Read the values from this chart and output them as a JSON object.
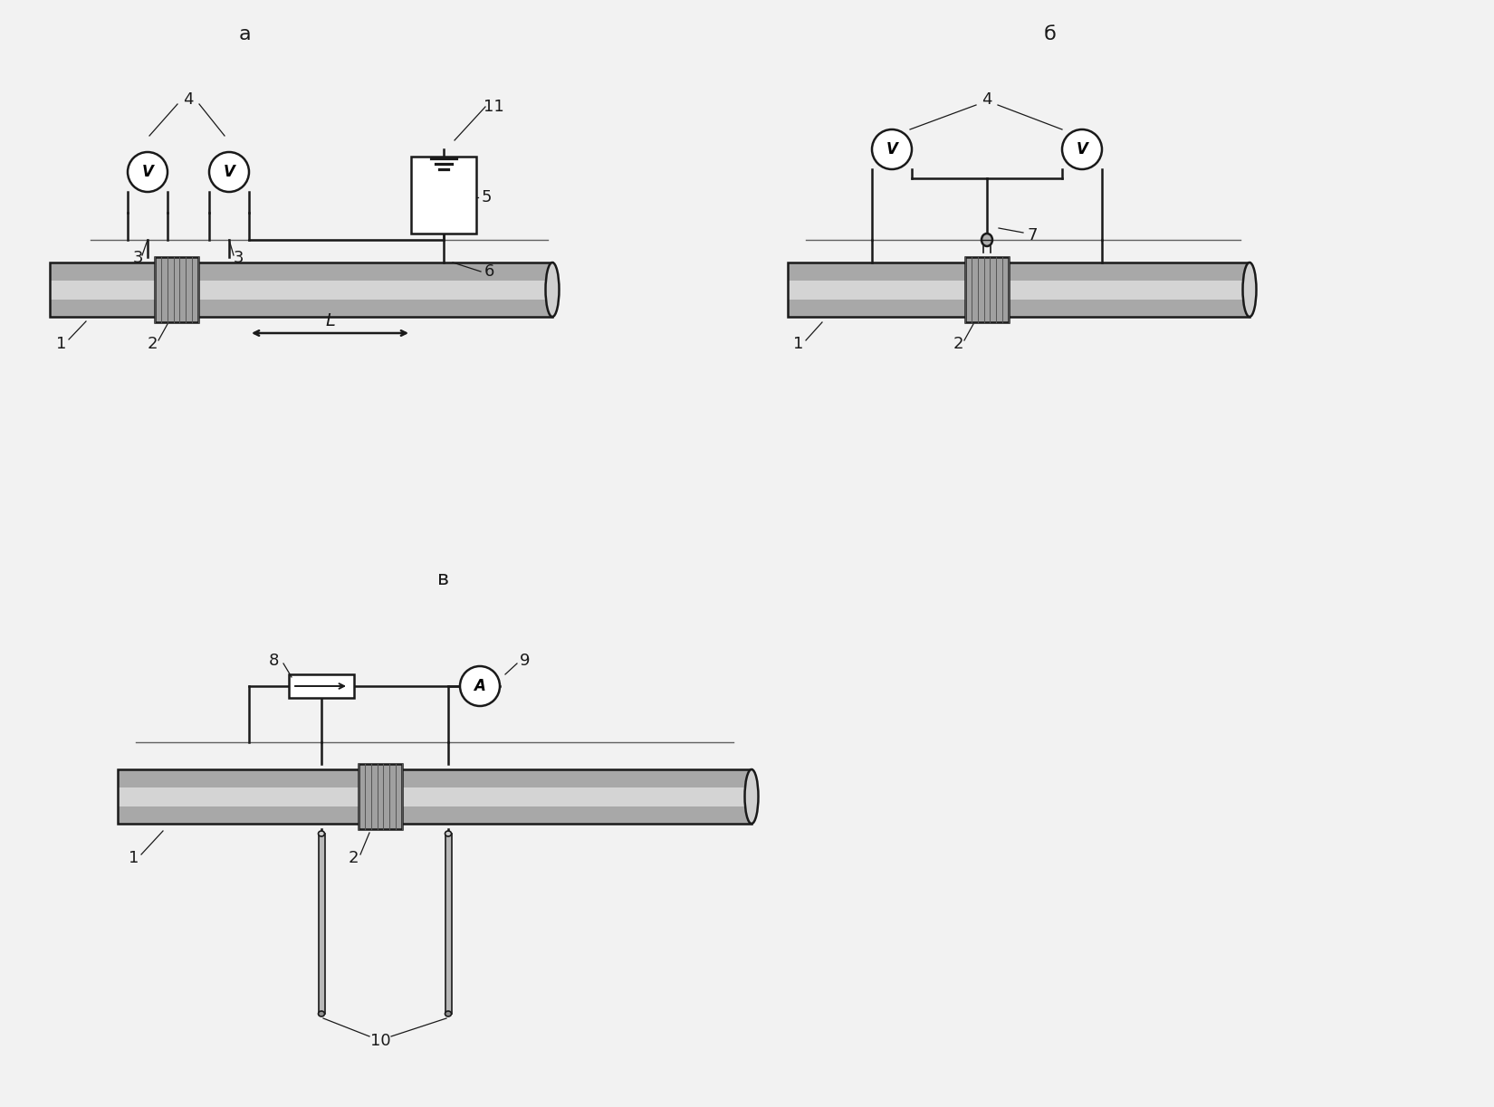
{
  "bg_color": "#f2f2f2",
  "lc": "#1a1a1a",
  "pipe_fill": "#b0b0b0",
  "pipe_light": "#d8d8d8",
  "pipe_dark": "#888888",
  "flange_fill": "#999999",
  "label_a": "a",
  "label_b": "б",
  "label_c": "в",
  "fs_title": 16,
  "fs_num": 13,
  "fs_meter": 12,
  "lw": 1.8
}
